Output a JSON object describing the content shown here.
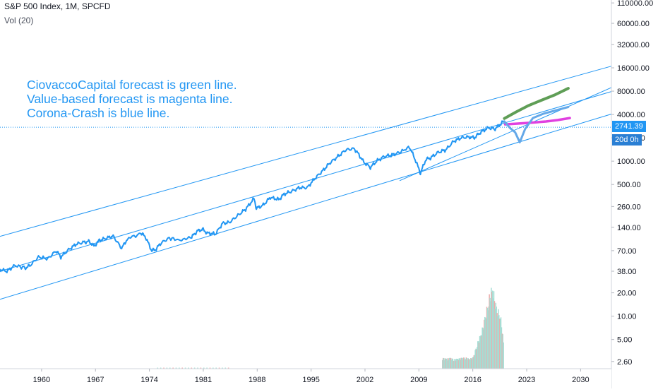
{
  "header": {
    "symbol": "S&P 500 Index, 1M, SPCFD",
    "volume_label": "Vol (20)"
  },
  "annotations": [
    "CiovaccoCapital forecast is green line.",
    "Value-based forecast is magenta line.",
    "Corona-Crash is blue line."
  ],
  "price_tag": {
    "last_price": "2741.39",
    "countdown": "20d 0h"
  },
  "colors": {
    "price": "#2196F3",
    "channel": "#2196F3",
    "green_forecast": "#5F9E56",
    "magenta_forecast": "#E040E0",
    "crash_forecast": "#64A8E8",
    "volume_up": "#A6DDD4",
    "volume_down": "#EDAAAA",
    "axis_text": "#131722"
  },
  "chart_data": {
    "type": "line",
    "y_scale": "log",
    "ylim": [
      2.1,
      120000
    ],
    "xlim": [
      1954.6,
      2034.0
    ],
    "y_tick_labels": [
      "110000.00",
      "60000.00",
      "32000.00",
      "16000.00",
      "8000.00",
      "4000.00",
      "2000.00",
      "1000.00",
      "500.00",
      "260.00",
      "140.00",
      "70.00",
      "38.00",
      "20.00",
      "10.00",
      "5.00",
      "2.60"
    ],
    "x_tick_labels": [
      "1960",
      "1967",
      "1974",
      "1981",
      "1988",
      "1995",
      "2002",
      "2009",
      "2016",
      "2023",
      "2030"
    ],
    "series": [
      {
        "key": "price",
        "x": [
          1954.6,
          1955.5,
          1956.5,
          1957.9,
          1958.5,
          1959.6,
          1960.8,
          1961.9,
          1962.5,
          1963.5,
          1964.5,
          1965.5,
          1966.2,
          1966.8,
          1967.5,
          1968.5,
          1969.3,
          1970.4,
          1971.1,
          1972.9,
          1973.5,
          1974.3,
          1974.8,
          1975.5,
          1976.6,
          1978.0,
          1979.5,
          1980.2,
          1980.9,
          1981.5,
          1982.6,
          1983.5,
          1984.4,
          1985.5,
          1986.5,
          1987.6,
          1987.9,
          1988.8,
          1989.7,
          1990.8,
          1991.5,
          1992.5,
          1993.5,
          1994.5,
          1995.5,
          1996.5,
          1997.5,
          1998.5,
          1999.5,
          2000.6,
          2001.3,
          2001.8,
          2002.7,
          2003.5,
          2004.5,
          2005.5,
          2006.5,
          2007.8,
          2008.6,
          2009.2,
          2009.9,
          2010.5,
          2011.5,
          2012.5,
          2013.5,
          2014.5,
          2015.5,
          2016.2,
          2017.0,
          2018.0,
          2018.9,
          2019.5,
          2020.1
        ],
        "y": [
          40,
          38,
          45,
          42,
          45,
          58,
          55,
          70,
          58,
          72,
          85,
          90,
          92,
          80,
          95,
          102,
          108,
          75,
          98,
          118,
          105,
          70,
          72,
          88,
          102,
          95,
          105,
          125,
          132,
          118,
          115,
          158,
          162,
          200,
          240,
          330,
          245,
          272,
          340,
          320,
          375,
          410,
          455,
          455,
          600,
          750,
          960,
          1150,
          1400,
          1450,
          1180,
          980,
          830,
          1000,
          1150,
          1200,
          1300,
          1520,
          1000,
          700,
          1050,
          1100,
          1300,
          1400,
          1800,
          2000,
          2050,
          2000,
          2350,
          2700,
          2600,
          2950,
          3300
        ]
      },
      {
        "key": "green_forecast",
        "x": [
          2020.1,
          2021.6,
          2023.2,
          2024.9,
          2026.7,
          2028.4
        ],
        "y": [
          3550,
          4300,
          5200,
          6100,
          7200,
          8700
        ]
      },
      {
        "key": "magenta_forecast",
        "x": [
          2020.2,
          2022.0,
          2023.8,
          2025.5,
          2027.0,
          2028.6
        ],
        "y": [
          2980,
          3060,
          3150,
          3250,
          3390,
          3600
        ]
      },
      {
        "key": "crash_forecast",
        "x": [
          2020.1,
          2020.8,
          2021.5,
          2022.1,
          2022.8,
          2023.8,
          2025.2,
          2026.7,
          2028.4
        ],
        "y": [
          3250,
          2700,
          2350,
          1750,
          2600,
          3600,
          4100,
          4500,
          5000
        ]
      }
    ],
    "trend_lines": [
      {
        "key": "upper-channel",
        "x": [
          1954.6,
          2034.0
        ],
        "y": [
          107,
          16800
        ]
      },
      {
        "key": "middle-channel",
        "x": [
          1954.6,
          2034.0
        ],
        "y": [
          38,
          7900
        ]
      },
      {
        "key": "lower-channel",
        "x": [
          1954.6,
          2034.0
        ],
        "y": [
          16.5,
          4050
        ]
      },
      {
        "key": "support-line",
        "x": [
          2006.5,
          2034.0
        ],
        "y": [
          560,
          8900
        ]
      }
    ],
    "last_price": 2741.39,
    "volume_scale_max": 36,
    "volume_bars": {
      "x": [
        2012.0,
        2012.5,
        2013.0,
        2013.5,
        2014.0,
        2014.5,
        2015.0,
        2015.5,
        2016.0,
        2016.5,
        2017.0,
        2017.5,
        2018.0,
        2018.5,
        2019.0,
        2019.5,
        2020.0
      ],
      "v": [
        4.3,
        4.0,
        4.3,
        3.8,
        4.0,
        4.3,
        4.5,
        3.9,
        4.6,
        10,
        14,
        20,
        28,
        33,
        24,
        22,
        9
      ]
    }
  }
}
